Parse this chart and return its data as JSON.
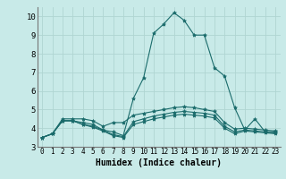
{
  "xlabel": "Humidex (Indice chaleur)",
  "background_color": "#c8eae8",
  "grid_color": "#b0d5d2",
  "line_color": "#1a6b6b",
  "xlim": [
    -0.5,
    23.5
  ],
  "ylim": [
    3,
    10.5
  ],
  "yticks": [
    3,
    4,
    5,
    6,
    7,
    8,
    9,
    10
  ],
  "xticks": [
    0,
    1,
    2,
    3,
    4,
    5,
    6,
    7,
    8,
    9,
    10,
    11,
    12,
    13,
    14,
    15,
    16,
    17,
    18,
    19,
    20,
    21,
    22,
    23
  ],
  "series": [
    [
      3.5,
      3.7,
      4.4,
      4.4,
      4.3,
      4.2,
      3.9,
      3.8,
      3.6,
      5.6,
      6.7,
      9.1,
      9.6,
      10.2,
      9.8,
      9.0,
      9.0,
      7.25,
      6.8,
      5.1,
      3.9,
      4.5,
      3.8,
      3.8
    ],
    [
      3.5,
      3.7,
      4.5,
      4.5,
      4.5,
      4.4,
      4.1,
      4.3,
      4.3,
      4.7,
      4.8,
      4.9,
      5.0,
      5.1,
      5.15,
      5.1,
      5.0,
      4.9,
      4.3,
      3.95,
      4.0,
      3.95,
      3.9,
      3.85
    ],
    [
      3.5,
      3.7,
      4.4,
      4.4,
      4.2,
      4.1,
      3.9,
      3.65,
      3.55,
      4.35,
      4.5,
      4.65,
      4.75,
      4.85,
      4.9,
      4.85,
      4.8,
      4.7,
      4.1,
      3.8,
      3.9,
      3.85,
      3.8,
      3.75
    ],
    [
      3.5,
      3.7,
      4.4,
      4.4,
      4.2,
      4.05,
      3.85,
      3.6,
      3.5,
      4.2,
      4.35,
      4.5,
      4.6,
      4.7,
      4.75,
      4.7,
      4.65,
      4.55,
      4.0,
      3.7,
      3.85,
      3.8,
      3.75,
      3.7
    ]
  ]
}
